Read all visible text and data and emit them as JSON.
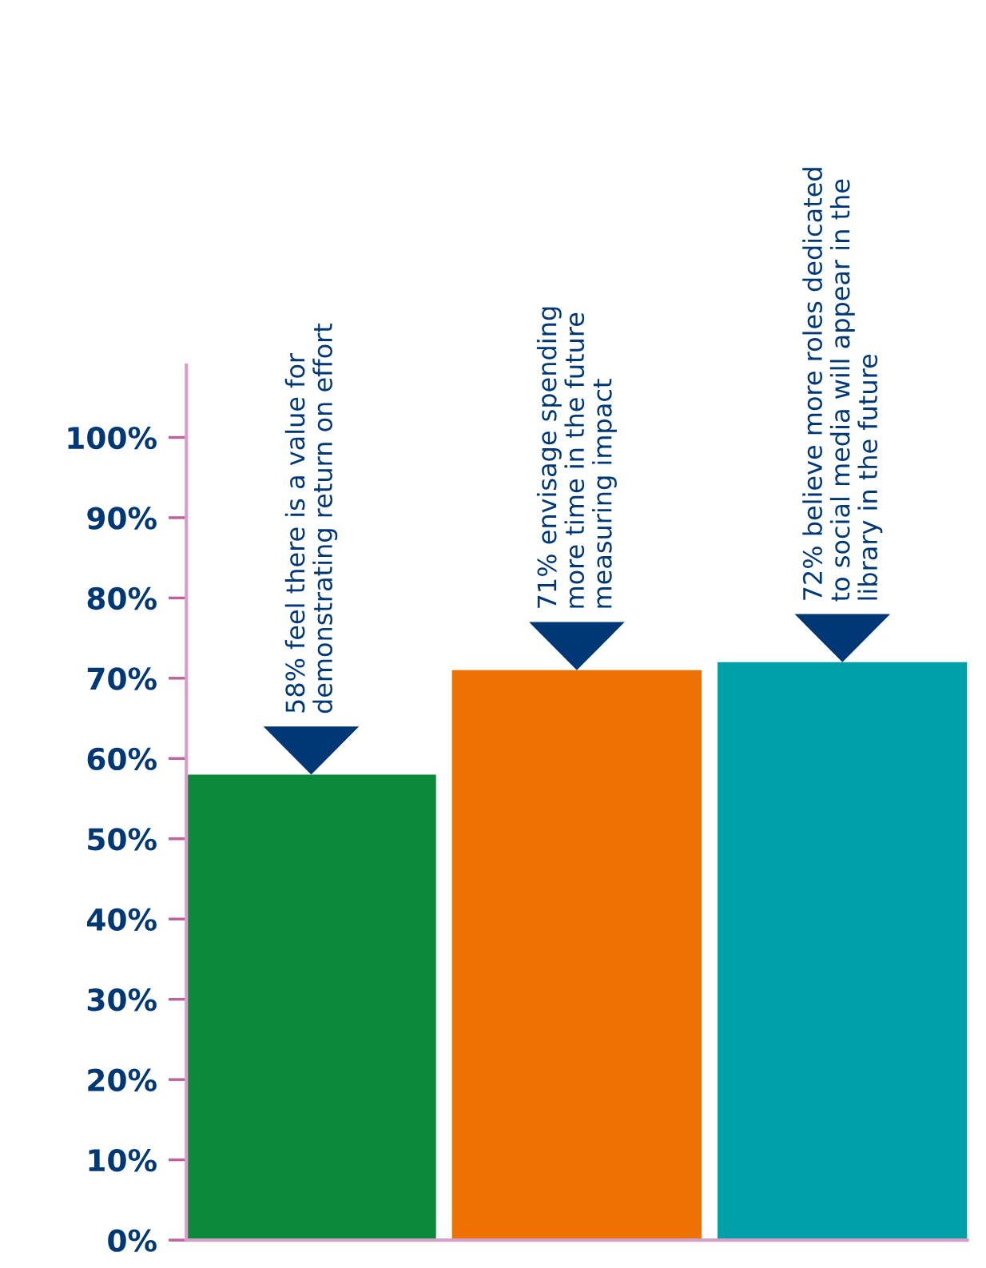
{
  "chart_data": {
    "type": "bar",
    "categories": [
      null,
      null,
      null
    ],
    "values": [
      58,
      71,
      72
    ],
    "colors": [
      "#0a8a3a",
      "#ee7203",
      "#00a0a8"
    ],
    "annotations": [
      "58% feel there is a value for\ndemonstrating return on effort",
      "71% envisage spending\nmore time in the future\nmeasuring impact",
      "72% believe more roles dedicated\nto social media will appear in the\nlibrary in the future"
    ],
    "ylim": [
      0,
      109
    ],
    "yticks": [
      {
        "value": 0,
        "label": "0%"
      },
      {
        "value": 10,
        "label": "10%"
      },
      {
        "value": 20,
        "label": "20%"
      },
      {
        "value": 30,
        "label": "30%"
      },
      {
        "value": 40,
        "label": "40%"
      },
      {
        "value": 50,
        "label": "50%"
      },
      {
        "value": 60,
        "label": "60%"
      },
      {
        "value": 70,
        "label": "70%"
      },
      {
        "value": 80,
        "label": "80%"
      },
      {
        "value": 90,
        "label": "90%"
      },
      {
        "value": 100,
        "label": "100%"
      }
    ],
    "tick_labels": "y",
    "grid": false,
    "legend": false
  }
}
